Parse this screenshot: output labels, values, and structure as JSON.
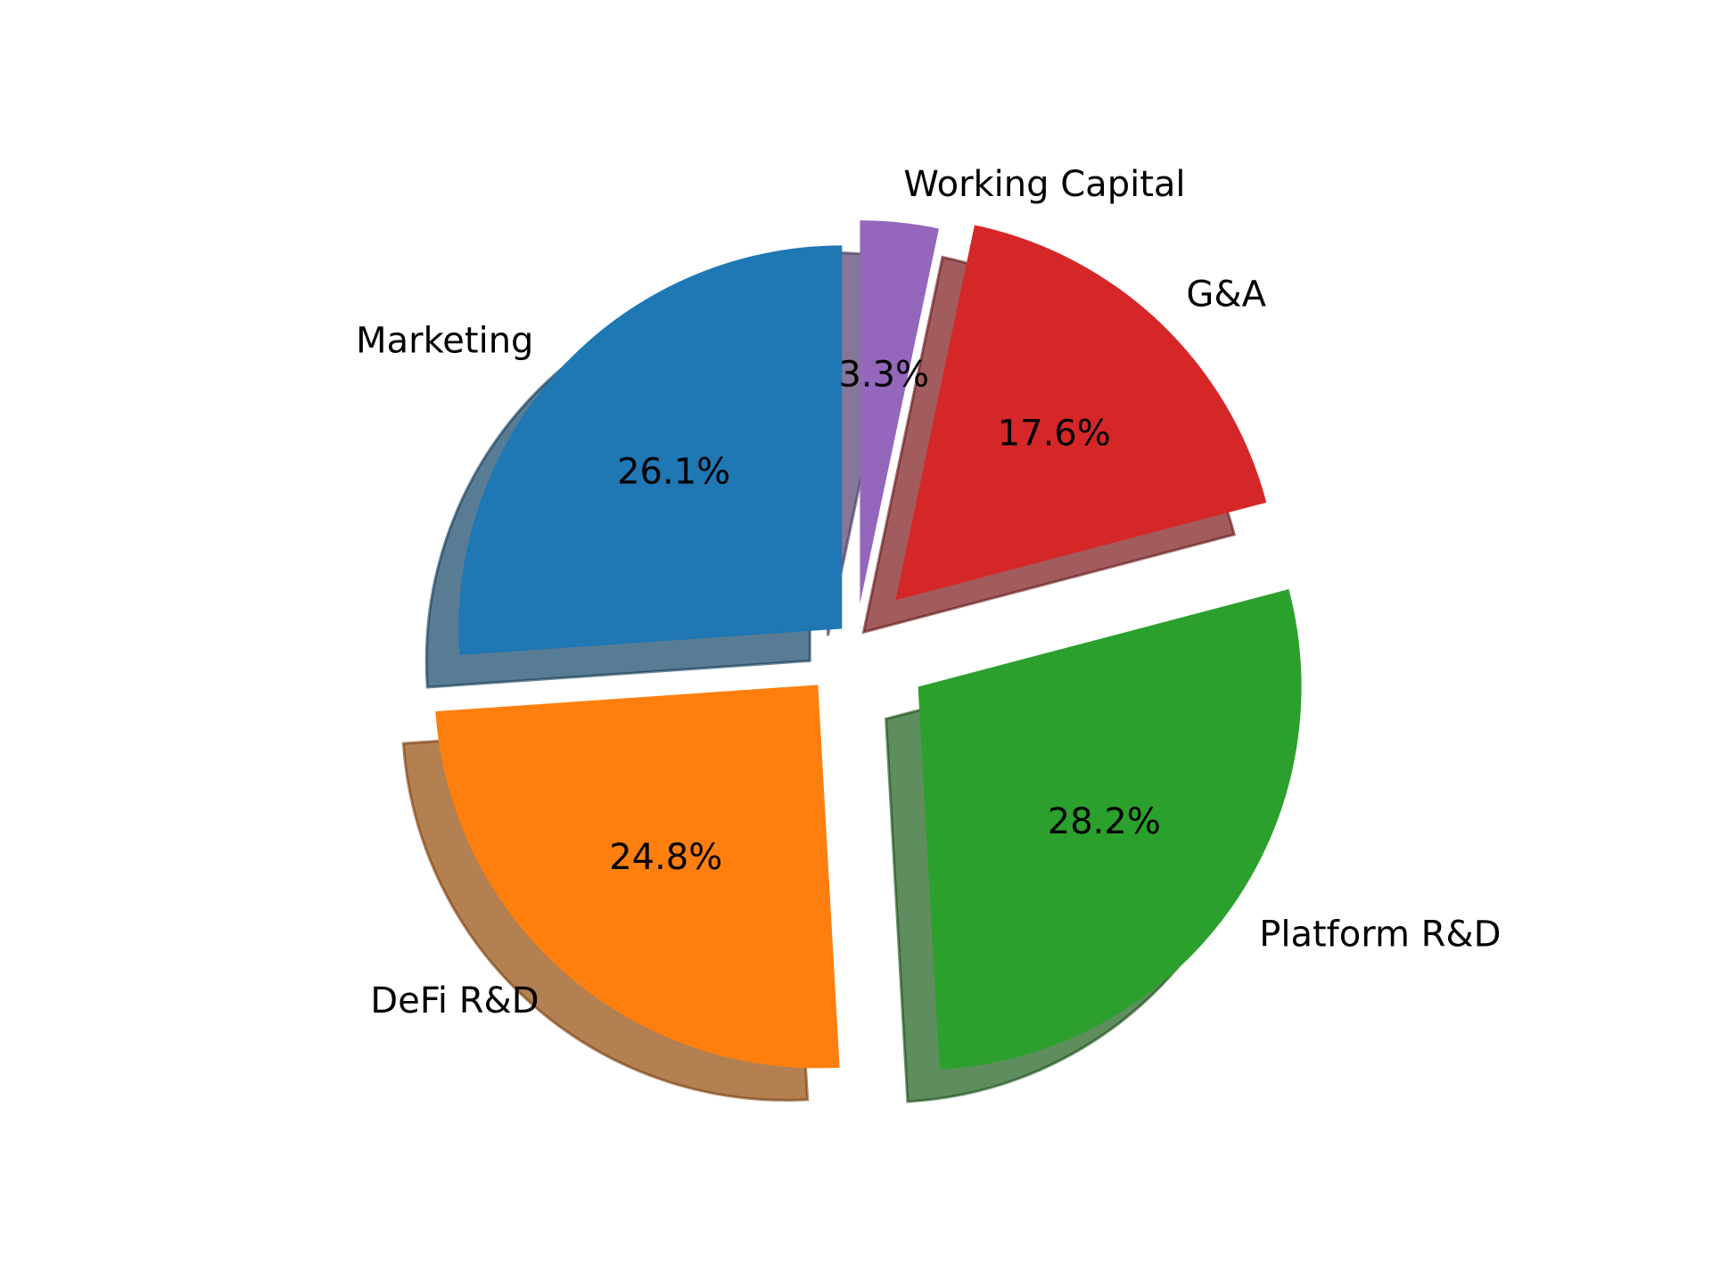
{
  "chart_data": {
    "type": "pie",
    "title": "",
    "start_angle_deg": 90,
    "direction": "counterclockwise",
    "shadow": true,
    "slices": [
      {
        "label": "Marketing",
        "value": 26.1,
        "pct_label": "26.1%",
        "color": "#1f77b4",
        "explode": 0.05
      },
      {
        "label": "DeFi R&D",
        "value": 24.8,
        "pct_label": "24.8%",
        "color": "#ff7f0e",
        "explode": 0.15
      },
      {
        "label": "Platform R&D",
        "value": 28.2,
        "pct_label": "28.2%",
        "color": "#2ca02c",
        "explode": 0.2
      },
      {
        "label": "G&A",
        "value": 17.6,
        "pct_label": "17.6%",
        "color": "#d62728",
        "explode": 0.15
      },
      {
        "label": "Working Capital",
        "value": 3.3,
        "pct_label": "3.3%",
        "color": "#9467bd",
        "explode": 0.1
      }
    ]
  }
}
